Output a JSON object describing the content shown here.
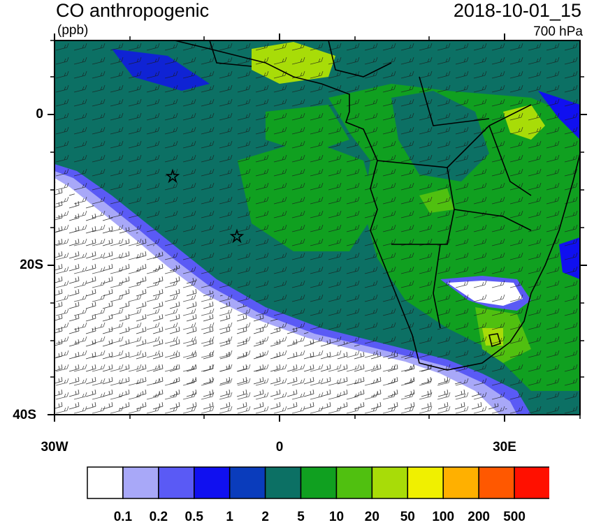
{
  "title": "CO anthropogenic",
  "units": "(ppb)",
  "datetime": "2018-10-01_15",
  "level": "700 hPa",
  "lat_labels": [
    "0",
    "20S",
    "40S"
  ],
  "lon_labels": [
    "30W",
    "0",
    "30E"
  ],
  "colorbar": {
    "colors": [
      "#ffffff",
      "#a8a8f8",
      "#5a5af5",
      "#1010f0",
      "#0a3cbc",
      "#0c7064",
      "#10a020",
      "#50c010",
      "#a8dc08",
      "#f0f000",
      "#ffb000",
      "#ff5800",
      "#ff1000"
    ],
    "labels": [
      "0.1",
      "0.2",
      "0.5",
      "1",
      "2",
      "5",
      "10",
      "20",
      "50",
      "100",
      "200",
      "500"
    ]
  },
  "markers": [
    "star",
    "star"
  ]
}
